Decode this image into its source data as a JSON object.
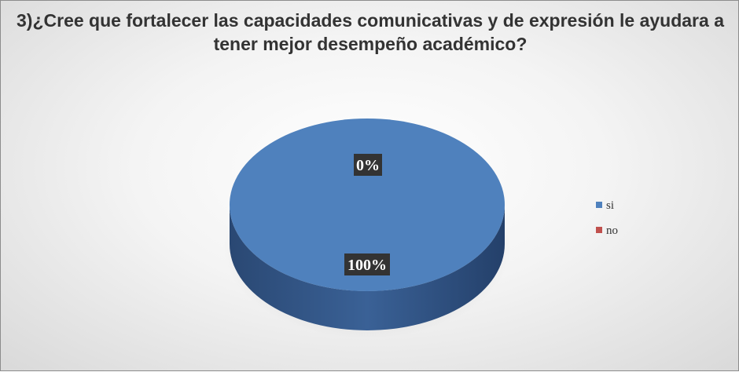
{
  "chart_data": {
    "type": "pie",
    "title": "3)¿Cree que fortalecer las capacidades comunicativas y de expresión le ayudara a tener mejor desempeño académico?",
    "categories": [
      "si",
      "no"
    ],
    "values": [
      100,
      0
    ],
    "data_labels": [
      "100%",
      "0%"
    ],
    "colors": [
      "#4f81bd",
      "#c0504d"
    ],
    "legend_position": "right",
    "style": "3d"
  }
}
